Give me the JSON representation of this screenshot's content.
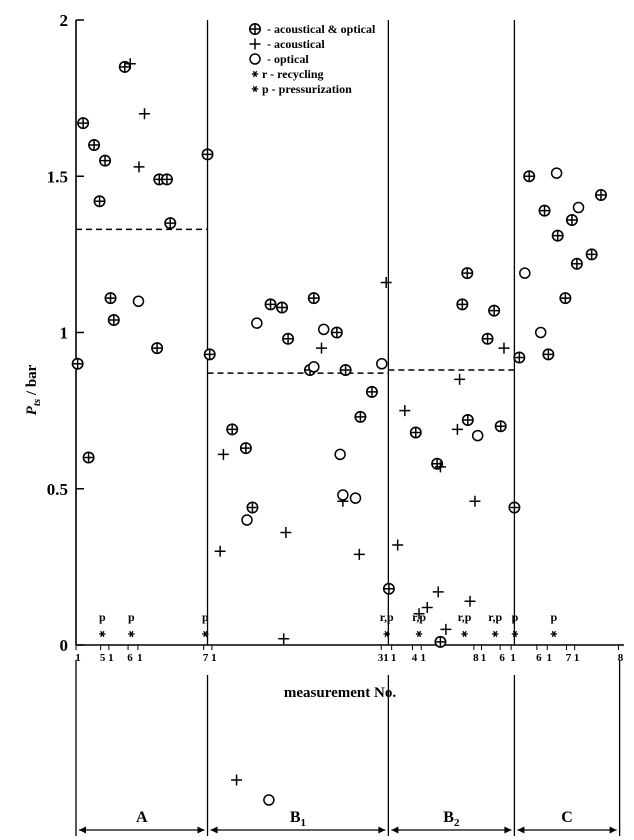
{
  "chart_data": {
    "type": "scatter",
    "xlabel": "measurement No.",
    "ylabel": "P_ts / bar",
    "ylabel_main": "P",
    "ylabel_sub": "ts",
    "ylabel_rest": " / bar",
    "ylim": [
      0,
      2
    ],
    "yticks": [
      "0",
      "0.5",
      "1",
      "1.5",
      "2"
    ],
    "xlim": [
      0,
      100
    ],
    "legend": {
      "position": "top-center",
      "items": [
        {
          "symbol": "circle-plus",
          "label": "- acoustical & optical"
        },
        {
          "symbol": "plus",
          "label": "- acoustical"
        },
        {
          "symbol": "circle",
          "label": "- optical"
        },
        {
          "symbol": "star",
          "label": "r - recycling"
        },
        {
          "symbol": "star",
          "label": "p - pressurization"
        }
      ]
    },
    "phase_boundaries_x": [
      24,
      57,
      80
    ],
    "segments": [
      {
        "label": "A",
        "sub": "",
        "x0": 0,
        "x1": 24
      },
      {
        "label": "B",
        "sub": "1",
        "x0": 24,
        "x1": 57
      },
      {
        "label": "B",
        "sub": "2",
        "x0": 57,
        "x1": 80
      },
      {
        "label": "C",
        "sub": "",
        "x0": 80,
        "x1": 100
      }
    ],
    "mean_lines": [
      {
        "x0": 0,
        "x1": 24,
        "y": 1.33
      },
      {
        "x0": 24,
        "x1": 57,
        "y": 0.87
      },
      {
        "x0": 57,
        "x1": 80,
        "y": 0.88
      }
    ],
    "series": [
      {
        "name": "acoustical & optical",
        "marker": "circle-plus",
        "points": [
          [
            0.3,
            0.9
          ],
          [
            1.3,
            1.67
          ],
          [
            2.3,
            0.6
          ],
          [
            3.3,
            1.6
          ],
          [
            4.3,
            1.42
          ],
          [
            5.3,
            1.55
          ],
          [
            6.3,
            1.11
          ],
          [
            6.9,
            1.04
          ],
          [
            8.9,
            1.85
          ],
          [
            14.8,
            0.95
          ],
          [
            15.2,
            1.49
          ],
          [
            16.6,
            1.49
          ],
          [
            17.2,
            1.35
          ],
          [
            24.0,
            1.57
          ],
          [
            24.4,
            0.93
          ],
          [
            28.5,
            0.69
          ],
          [
            31.0,
            0.63
          ],
          [
            32.2,
            0.44
          ],
          [
            35.5,
            1.09
          ],
          [
            37.6,
            1.08
          ],
          [
            38.7,
            0.98
          ],
          [
            42.7,
            0.88
          ],
          [
            43.4,
            1.11
          ],
          [
            47.6,
            1.0
          ],
          [
            49.2,
            0.88
          ],
          [
            51.9,
            0.73
          ],
          [
            54.0,
            0.81
          ],
          [
            57.1,
            0.18
          ],
          [
            62.0,
            0.68
          ],
          [
            65.9,
            0.58
          ],
          [
            66.5,
            0.01
          ],
          [
            70.5,
            1.09
          ],
          [
            71.4,
            1.19
          ],
          [
            71.5,
            0.72
          ],
          [
            75.1,
            0.98
          ],
          [
            76.3,
            1.07
          ],
          [
            77.5,
            0.7
          ],
          [
            80.0,
            0.44
          ],
          [
            80.9,
            0.92
          ],
          [
            82.7,
            1.5
          ],
          [
            85.5,
            1.39
          ],
          [
            86.2,
            0.93
          ],
          [
            87.9,
            1.31
          ],
          [
            89.3,
            1.11
          ],
          [
            90.5,
            1.36
          ],
          [
            91.4,
            1.22
          ],
          [
            94.1,
            1.25
          ],
          [
            95.8,
            1.44
          ]
        ]
      },
      {
        "name": "acoustical",
        "marker": "plus",
        "points": [
          [
            9.9,
            1.86
          ],
          [
            11.5,
            1.53
          ],
          [
            12.5,
            1.7
          ],
          [
            26.3,
            0.3
          ],
          [
            26.9,
            0.61
          ],
          [
            37.9,
            0.02
          ],
          [
            38.3,
            0.36
          ],
          [
            44.8,
            0.95
          ],
          [
            48.7,
            0.46
          ],
          [
            51.7,
            0.29
          ],
          [
            56.6,
            1.16
          ],
          [
            58.7,
            0.32
          ],
          [
            60.0,
            0.75
          ],
          [
            62.6,
            0.1
          ],
          [
            64.1,
            0.12
          ],
          [
            66.1,
            0.17
          ],
          [
            66.5,
            0.57
          ],
          [
            67.5,
            0.05
          ],
          [
            69.6,
            0.69
          ],
          [
            70.0,
            0.85
          ],
          [
            71.9,
            0.14
          ],
          [
            72.8,
            0.46
          ],
          [
            78.1,
            0.95
          ]
        ]
      },
      {
        "name": "optical",
        "marker": "circle",
        "points": [
          [
            11.4,
            1.1
          ],
          [
            31.2,
            0.4
          ],
          [
            33.0,
            1.03
          ],
          [
            43.4,
            0.89
          ],
          [
            45.2,
            1.01
          ],
          [
            48.2,
            0.61
          ],
          [
            48.7,
            0.48
          ],
          [
            51.0,
            0.47
          ],
          [
            55.8,
            0.9
          ],
          [
            73.3,
            0.67
          ],
          [
            81.9,
            1.19
          ],
          [
            84.8,
            1.0
          ],
          [
            87.7,
            1.51
          ],
          [
            91.7,
            1.4
          ]
        ]
      }
    ],
    "below_axis_points": [
      {
        "marker": "plus",
        "x": 29.3
      },
      {
        "marker": "circle",
        "x": 35.2
      }
    ],
    "event_markers": [
      {
        "x": 4.8,
        "label": "p"
      },
      {
        "x": 10.1,
        "label": "p"
      },
      {
        "x": 23.6,
        "label": "p"
      },
      {
        "x": 56.7,
        "label": "r,p"
      },
      {
        "x": 62.6,
        "label": "r,p"
      },
      {
        "x": 70.9,
        "label": "r,p"
      },
      {
        "x": 76.5,
        "label": "r,p"
      },
      {
        "x": 80.1,
        "label": "p"
      },
      {
        "x": 87.2,
        "label": "p"
      }
    ],
    "measurement_numbers": [
      {
        "x": 0.0,
        "label": "1"
      },
      {
        "x": 4.5,
        "label": "5"
      },
      {
        "x": 6.0,
        "label": "1"
      },
      {
        "x": 9.5,
        "label": "6"
      },
      {
        "x": 11.3,
        "label": "1"
      },
      {
        "x": 23.3,
        "label": "7"
      },
      {
        "x": 24.8,
        "label": "1"
      },
      {
        "x": 55.7,
        "label": "31"
      },
      {
        "x": 57.6,
        "label": "1"
      },
      {
        "x": 61.4,
        "label": "4"
      },
      {
        "x": 63.0,
        "label": "1"
      },
      {
        "x": 72.6,
        "label": "8"
      },
      {
        "x": 74.0,
        "label": "1"
      },
      {
        "x": 77.4,
        "label": "6"
      },
      {
        "x": 79.4,
        "label": "1"
      },
      {
        "x": 84.1,
        "label": "6"
      },
      {
        "x": 86.0,
        "label": "1"
      },
      {
        "x": 89.5,
        "label": "7"
      },
      {
        "x": 91.0,
        "label": "1"
      },
      {
        "x": 99.0,
        "label": "8"
      }
    ]
  }
}
